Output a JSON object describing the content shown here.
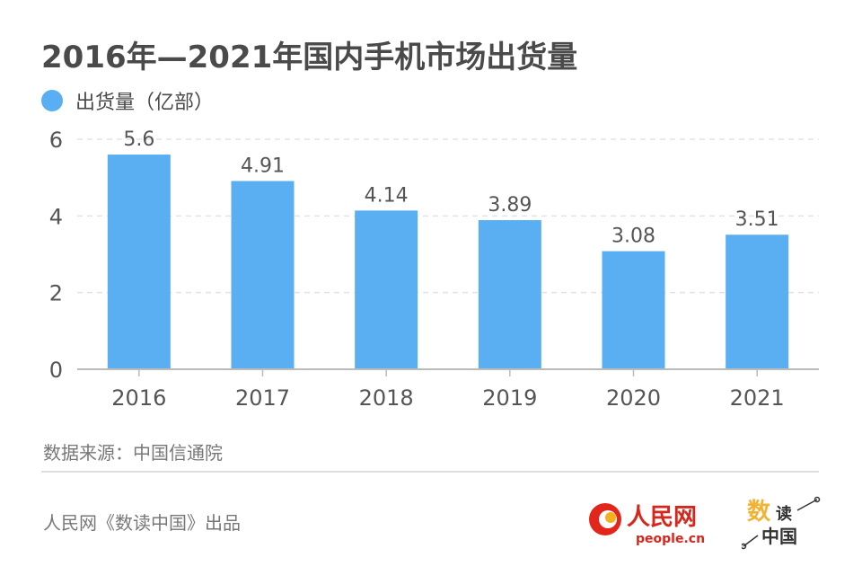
{
  "title": "2016年—2021年国内手机市场出货量",
  "legend": {
    "label": "出货量（亿部）",
    "color": "#5aaef2"
  },
  "chart_data": {
    "type": "bar",
    "categories": [
      "2016",
      "2017",
      "2018",
      "2019",
      "2020",
      "2021"
    ],
    "series": [
      {
        "name": "出货量（亿部）",
        "values": [
          5.6,
          4.91,
          4.14,
          3.89,
          3.08,
          3.51
        ]
      }
    ],
    "data_labels": [
      "5.6",
      "4.91",
      "4.14",
      "3.89",
      "3.08",
      "3.51"
    ],
    "y_ticks": [
      "0",
      "2",
      "4",
      "6"
    ],
    "ylim": [
      0,
      6
    ],
    "grid": true,
    "legend_position": "top-left",
    "bar_color": "#5aaef2"
  },
  "source": "数据来源：中国信通院",
  "credit": "人民网《数读中国》出品",
  "logos": {
    "people_logo_alt": "人民网 people.cn",
    "sdzg_logo_alt": "数读中国"
  }
}
